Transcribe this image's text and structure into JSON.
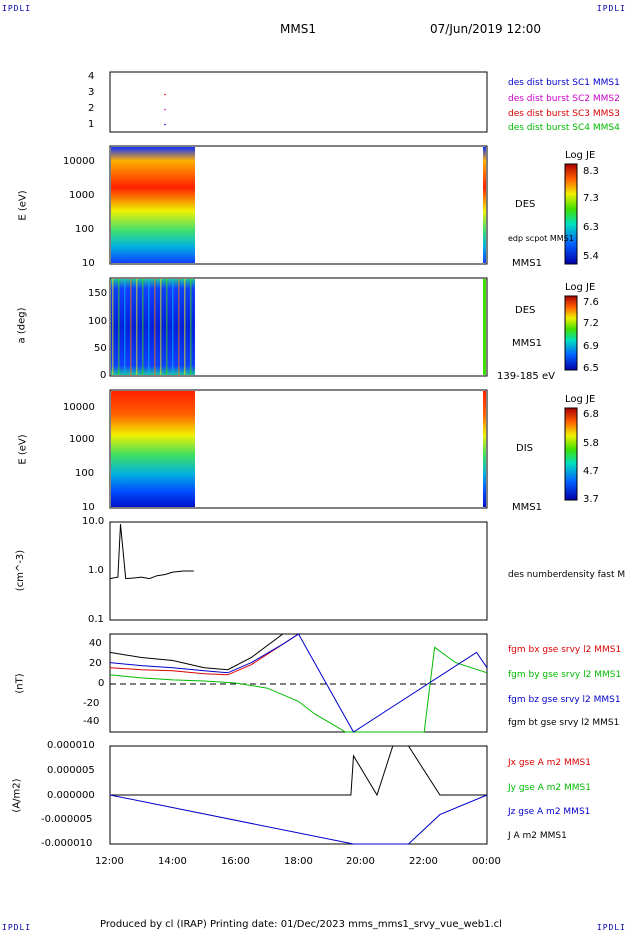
{
  "corners": {
    "tl": "IPDLI",
    "tr": "IPDLI",
    "bl": "IPDLI",
    "br": "IPDLI"
  },
  "header": {
    "spacecraft": "MMS1",
    "datetime": "07/Jun/2019 12:00"
  },
  "footer": {
    "text": "Produced by cl (IRAP)   Printing date: 01/Dec/2023   mms_mms1_srvy_vue_web1.cl"
  },
  "panels": {
    "p1": {
      "yticks": [
        "4",
        "3",
        "2",
        "1"
      ],
      "legend": [
        {
          "text": "des dist burst SC1 MMS1",
          "color": "#0000cc"
        },
        {
          "text": "des dist burst SC2 MMS2",
          "color": "#cc00cc"
        },
        {
          "text": "des dist burst SC3 MMS3",
          "color": "#dd0000"
        },
        {
          "text": "des dist burst SC4 MMS4",
          "color": "#00bb00"
        }
      ]
    },
    "p2": {
      "ylabel": "E (eV)",
      "yticks": [
        "10000",
        "1000",
        "100",
        "10"
      ],
      "right_label": "DES",
      "right_small": "edp scpot MMS1",
      "right_bottom": "MMS1",
      "cbar": {
        "title": "Log JE",
        "ticks": [
          "8.3",
          "7.3",
          "6.3",
          "5.4"
        ]
      }
    },
    "p3": {
      "ylabel": "a (deg)",
      "yticks": [
        "150",
        "100",
        "50",
        "0"
      ],
      "right_label": "DES",
      "right_mid": "MMS1",
      "right_bottom": "139-185 eV",
      "cbar": {
        "title": "Log JE",
        "ticks": [
          "7.6",
          "7.2",
          "6.9",
          "6.5"
        ]
      }
    },
    "p4": {
      "ylabel": "E (eV)",
      "yticks": [
        "10000",
        "1000",
        "100",
        "10"
      ],
      "right_label": "DIS",
      "right_bottom": "MMS1",
      "cbar": {
        "title": "Log JE",
        "ticks": [
          "6.8",
          "5.8",
          "4.7",
          "3.7"
        ]
      }
    },
    "p5": {
      "ylabel": "(cm^-3)",
      "yticks": [
        "10.0",
        "1.0",
        "0.1"
      ],
      "legend": [
        {
          "text": "des numberdensity fast M",
          "color": "#000000"
        }
      ]
    },
    "p6": {
      "ylabel": "(nT)",
      "yticks": [
        "40",
        "20",
        "0",
        "-20",
        "-40"
      ],
      "legend": [
        {
          "text": "fgm bx gse srvy l2 MMS1",
          "color": "#dd0000"
        },
        {
          "text": "fgm by gse srvy l2 MMS1",
          "color": "#00bb00"
        },
        {
          "text": "fgm bz gse srvy l2 MMS1",
          "color": "#0000cc"
        },
        {
          "text": "fgm bt gse srvy l2 MMS1",
          "color": "#000000"
        }
      ]
    },
    "p7": {
      "ylabel": "(A/m2)",
      "yticks": [
        "0.000010",
        "0.000005",
        "0.000000",
        "-0.000005",
        "-0.000010"
      ],
      "legend": [
        {
          "text": "Jx gse A m2 MMS1",
          "color": "#dd0000"
        },
        {
          "text": "Jy gse A m2 MMS1",
          "color": "#00bb00"
        },
        {
          "text": "Jz gse A m2 MMS1",
          "color": "#0000cc"
        },
        {
          "text": "J A m2 MMS1",
          "color": "#000000"
        }
      ]
    }
  },
  "xaxis": {
    "ticks": [
      "12:00",
      "14:00",
      "16:00",
      "18:00",
      "20:00",
      "22:00",
      "00:00"
    ]
  },
  "chart_data": {
    "type": "line",
    "title": "MMS1",
    "time_range": [
      "2019-06-07 12:00",
      "2019-06-08 00:00"
    ],
    "x_ticks": [
      "12:00",
      "14:00",
      "16:00",
      "18:00",
      "20:00",
      "22:00",
      "00:00"
    ],
    "panels": [
      {
        "id": "des_dist_burst",
        "yrange": [
          0.5,
          4.5
        ],
        "series": [
          {
            "name": "des dist burst SC1 MMS1",
            "x": [
              "13:45"
            ],
            "y": [
              1
            ]
          },
          {
            "name": "des dist burst SC2 MMS2",
            "x": [
              "13:45"
            ],
            "y": [
              2
            ]
          },
          {
            "name": "des dist burst SC3 MMS3",
            "x": [
              "13:45"
            ],
            "y": [
              3
            ]
          }
        ]
      },
      {
        "id": "des_energy",
        "type": "heatmap",
        "ylabel": "E (eV)",
        "yscale": "log",
        "yrange": [
          10,
          30000
        ],
        "colorbar": {
          "label": "Log JE",
          "range": [
            5.4,
            8.3
          ]
        },
        "data_time_range": [
          "12:00",
          "14:40"
        ]
      },
      {
        "id": "des_pitch",
        "type": "heatmap",
        "ylabel": "a (deg)",
        "yrange": [
          0,
          180
        ],
        "colorbar": {
          "label": "Log JE",
          "range": [
            6.5,
            7.6
          ]
        },
        "energy_band": "139-185 eV",
        "data_time_range": [
          "12:00",
          "14:40"
        ]
      },
      {
        "id": "dis_energy",
        "type": "heatmap",
        "ylabel": "E (eV)",
        "yscale": "log",
        "yrange": [
          10,
          30000
        ],
        "colorbar": {
          "label": "Log JE",
          "range": [
            3.7,
            6.8
          ]
        },
        "data_time_range": [
          "12:00",
          "14:40"
        ]
      },
      {
        "id": "density",
        "ylabel": "(cm^-3)",
        "yscale": "log",
        "yrange": [
          0.1,
          10
        ],
        "series": [
          {
            "name": "des numberdensity fast M",
            "x": [
              "12:00",
              "12:15",
              "12:20",
              "12:30",
              "12:45",
              "13:00",
              "13:15",
              "13:30",
              "13:45",
              "14:00",
              "14:20",
              "14:40"
            ],
            "y": [
              0.7,
              0.75,
              9.0,
              0.7,
              0.72,
              0.75,
              0.7,
              0.8,
              0.85,
              0.95,
              1.0,
              1.0
            ]
          }
        ]
      },
      {
        "id": "fgm",
        "ylabel": "(nT)",
        "yrange": [
          -48,
          48
        ],
        "series": [
          {
            "name": "fgm bx gse srvy l2 MMS1",
            "x": [
              "12:00",
              "13:00",
              "14:00",
              "15:00",
              "15:45",
              "16:30",
              "17:30",
              "18:00"
            ],
            "y": [
              15,
              13,
              12,
              9,
              8,
              18,
              38,
              48
            ]
          },
          {
            "name": "fgm by gse srvy l2 MMS1",
            "x": [
              "12:00",
              "13:00",
              "14:00",
              "15:00",
              "16:00",
              "17:00",
              "18:00",
              "18:30",
              "19:30",
              "20:30",
              "21:00",
              "22:00",
              "22:20",
              "23:00",
              "00:00"
            ],
            "y": [
              8,
              5,
              3,
              2,
              0,
              -5,
              -18,
              -30,
              -48,
              -48,
              -48,
              -48,
              35,
              20,
              10
            ]
          },
          {
            "name": "fgm bz gse srvy l2 MMS1",
            "x": [
              "12:00",
              "13:00",
              "14:00",
              "15:00",
              "15:45",
              "16:30",
              "17:30",
              "18:00",
              "19:45",
              "23:40",
              "00:00"
            ],
            "y": [
              20,
              17,
              15,
              12,
              10,
              20,
              38,
              48,
              -48,
              30,
              15
            ]
          },
          {
            "name": "fgm bt gse srvy l2 MMS1",
            "x": [
              "12:00",
              "13:00",
              "14:00",
              "15:00",
              "15:45",
              "16:30",
              "17:30"
            ],
            "y": [
              30,
              25,
              22,
              15,
              13,
              25,
              48
            ]
          }
        ]
      },
      {
        "id": "current",
        "ylabel": "(A/m2)",
        "yrange": [
          -1e-05,
          1e-05
        ],
        "series": [
          {
            "name": "J A m2 MMS1",
            "x": [
              "12:00",
              "19:40",
              "19:45",
              "20:30",
              "21:00",
              "21:30",
              "22:30",
              "00:00"
            ],
            "y": [
              0.0,
              0.0,
              8e-06,
              0.0,
              1e-05,
              1e-05,
              0.0,
              0.0
            ]
          },
          {
            "name": "Jz gse A m2 MMS1",
            "x": [
              "12:00",
              "19:45",
              "21:30",
              "22:30",
              "00:00"
            ],
            "y": [
              0.0,
              -1e-05,
              -1e-05,
              -4e-06,
              0.0
            ]
          }
        ]
      }
    ]
  }
}
